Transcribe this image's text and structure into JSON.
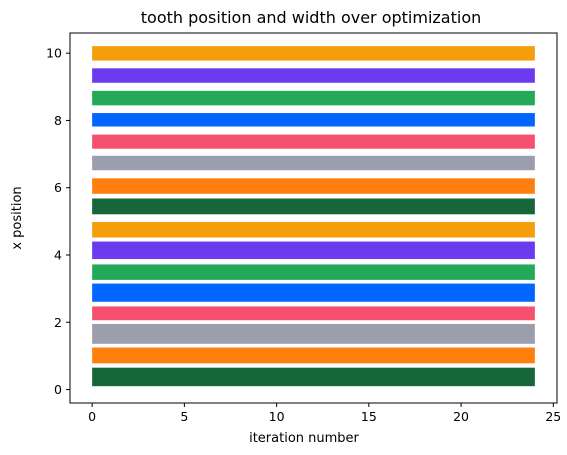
{
  "chart_data": {
    "type": "bar",
    "orientation": "horizontal-bands",
    "title": "tooth position and width over optimization",
    "xlabel": "iteration number",
    "ylabel": "x position",
    "xlim": [
      -1.2,
      25.2
    ],
    "ylim": [
      -0.4,
      10.6
    ],
    "xticks": [
      0,
      5,
      10,
      15,
      20,
      25
    ],
    "yticks": [
      0,
      2,
      4,
      6,
      8,
      10
    ],
    "iterations": [
      0,
      24
    ],
    "grid": false,
    "teeth": [
      {
        "y0": 0.1,
        "y1": 0.65,
        "color": "#176639"
      },
      {
        "y0": 0.78,
        "y1": 1.25,
        "color": "#ff7f0e"
      },
      {
        "y0": 1.36,
        "y1": 1.95,
        "color": "#9b9fad"
      },
      {
        "y0": 2.06,
        "y1": 2.47,
        "color": "#f5506e"
      },
      {
        "y0": 2.61,
        "y1": 3.15,
        "color": "#0066ff"
      },
      {
        "y0": 3.26,
        "y1": 3.72,
        "color": "#22aa58"
      },
      {
        "y0": 3.88,
        "y1": 4.4,
        "color": "#6c3aef"
      },
      {
        "y0": 4.52,
        "y1": 4.98,
        "color": "#f59e0b"
      },
      {
        "y0": 5.21,
        "y1": 5.68,
        "color": "#176639"
      },
      {
        "y0": 5.82,
        "y1": 6.28,
        "color": "#ff7f0e"
      },
      {
        "y0": 5.82,
        "y1": 5.82,
        "color": "#ff7f0e"
      },
      {
        "y0": 6.52,
        "y1": 6.95,
        "color": "#9b9fad"
      },
      {
        "y0": 7.16,
        "y1": 7.58,
        "color": "#f5506e"
      },
      {
        "y0": 7.82,
        "y1": 8.22,
        "color": "#0066ff"
      },
      {
        "y0": 8.45,
        "y1": 8.88,
        "color": "#22aa58"
      },
      {
        "y0": 9.12,
        "y1": 9.55,
        "color": "#6c3aef"
      },
      {
        "y0": 9.78,
        "y1": 10.21,
        "color": "#f59e0b"
      }
    ]
  }
}
